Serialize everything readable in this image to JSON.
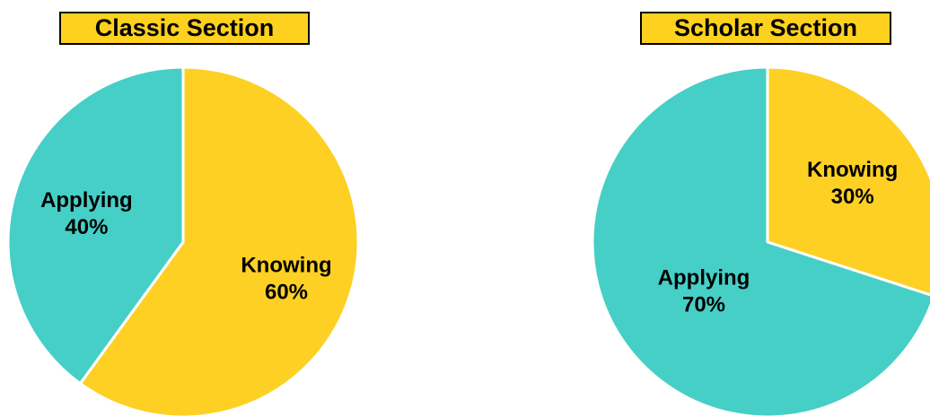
{
  "chart_data": [
    {
      "type": "pie",
      "title": "Classic Section",
      "slices": [
        {
          "label": "Knowing",
          "value": 60,
          "value_text": "60%",
          "color": "#fdd023"
        },
        {
          "label": "Applying",
          "value": 40,
          "value_text": "40%",
          "color": "#46cfc6"
        }
      ],
      "start": "12 o'clock",
      "direction": "clockwise"
    },
    {
      "type": "pie",
      "title": "Scholar Section",
      "slices": [
        {
          "label": "Knowing",
          "value": 30,
          "value_text": "30%",
          "color": "#fdd023"
        },
        {
          "label": "Applying",
          "value": 70,
          "value_text": "70%",
          "color": "#46cfc6"
        }
      ],
      "start": "12 o'clock",
      "direction": "clockwise"
    }
  ]
}
